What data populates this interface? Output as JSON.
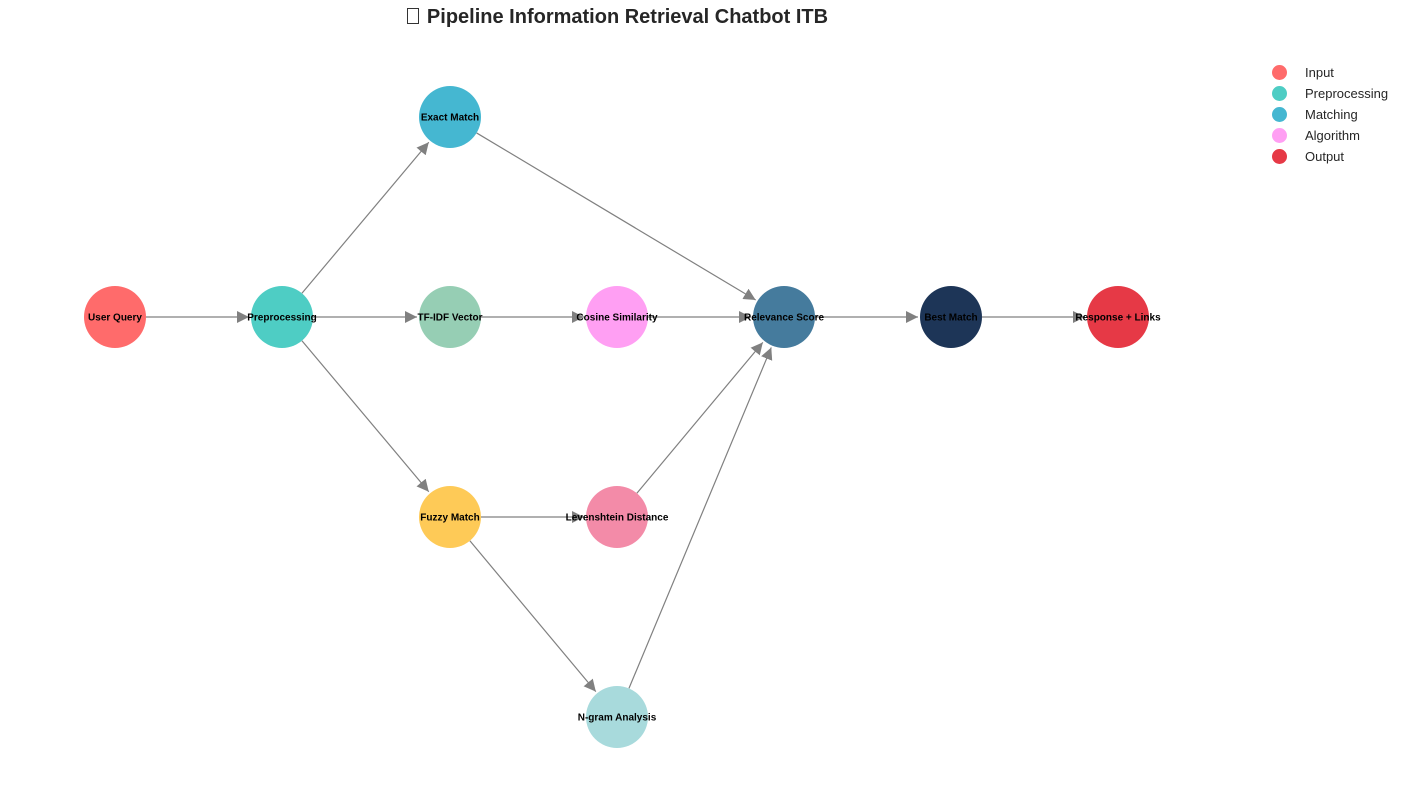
{
  "title": "Pipeline Information Retrieval Chatbot ITB",
  "title_icon": "missing-glyph-icon",
  "nodes": [
    {
      "id": "user_query",
      "label": "User Query",
      "color": "#FF6B6B"
    },
    {
      "id": "preprocessing",
      "label": "Preprocessing",
      "color": "#4ECDC4"
    },
    {
      "id": "exact_match",
      "label": "Exact Match",
      "color": "#45B7D1"
    },
    {
      "id": "tfidf_vector",
      "label": "TF-IDF Vector",
      "color": "#96CEB4"
    },
    {
      "id": "fuzzy_match",
      "label": "Fuzzy Match",
      "color": "#FECA57"
    },
    {
      "id": "cosine_similarity",
      "label": "Cosine Similarity",
      "color": "#FF9FF3"
    },
    {
      "id": "levenshtein_distance",
      "label": "Levenshtein Distance",
      "color": "#F38BA8"
    },
    {
      "id": "ngram_analysis",
      "label": "N-gram Analysis",
      "color": "#A8DADC"
    },
    {
      "id": "relevance_score",
      "label": "Relevance Score",
      "color": "#457B9D"
    },
    {
      "id": "best_match",
      "label": "Best Match",
      "color": "#1D3557"
    },
    {
      "id": "response_links",
      "label": "Response + Links",
      "color": "#E63946"
    }
  ],
  "edges": [
    [
      "user_query",
      "preprocessing"
    ],
    [
      "preprocessing",
      "exact_match"
    ],
    [
      "preprocessing",
      "tfidf_vector"
    ],
    [
      "preprocessing",
      "fuzzy_match"
    ],
    [
      "exact_match",
      "relevance_score"
    ],
    [
      "tfidf_vector",
      "cosine_similarity"
    ],
    [
      "cosine_similarity",
      "relevance_score"
    ],
    [
      "fuzzy_match",
      "levenshtein_distance"
    ],
    [
      "fuzzy_match",
      "ngram_analysis"
    ],
    [
      "levenshtein_distance",
      "relevance_score"
    ],
    [
      "ngram_analysis",
      "relevance_score"
    ],
    [
      "relevance_score",
      "best_match"
    ],
    [
      "best_match",
      "response_links"
    ]
  ],
  "legend": [
    {
      "label": "Input",
      "color": "#FF6B6B"
    },
    {
      "label": "Preprocessing",
      "color": "#4ECDC4"
    },
    {
      "label": "Matching",
      "color": "#45B7D1"
    },
    {
      "label": "Algorithm",
      "color": "#FF9FF3"
    },
    {
      "label": "Output",
      "color": "#E63946"
    }
  ],
  "edge_color": "#808080"
}
